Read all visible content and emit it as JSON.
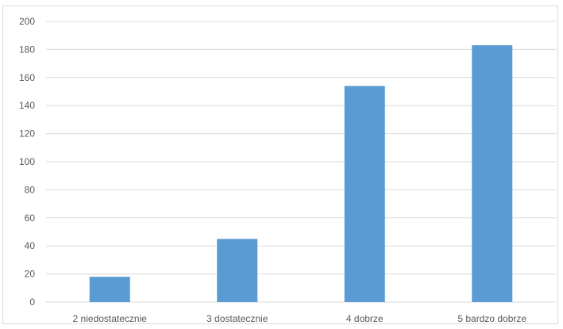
{
  "chart_data": {
    "type": "bar",
    "categories": [
      "2 niedostatecznie",
      "3 dostatecznie",
      "4 dobrze",
      "5 bardzo dobrze"
    ],
    "values": [
      18,
      45,
      154,
      183
    ],
    "ylim": [
      0,
      200
    ],
    "yticks": [
      "0",
      "20",
      "40",
      "60",
      "80",
      "100",
      "120",
      "140",
      "160",
      "180",
      "200"
    ],
    "grid": true,
    "legend": "none",
    "colors": {
      "bar": "#5b9bd5",
      "grid": "#d9d9d9",
      "text": "#595959"
    }
  }
}
